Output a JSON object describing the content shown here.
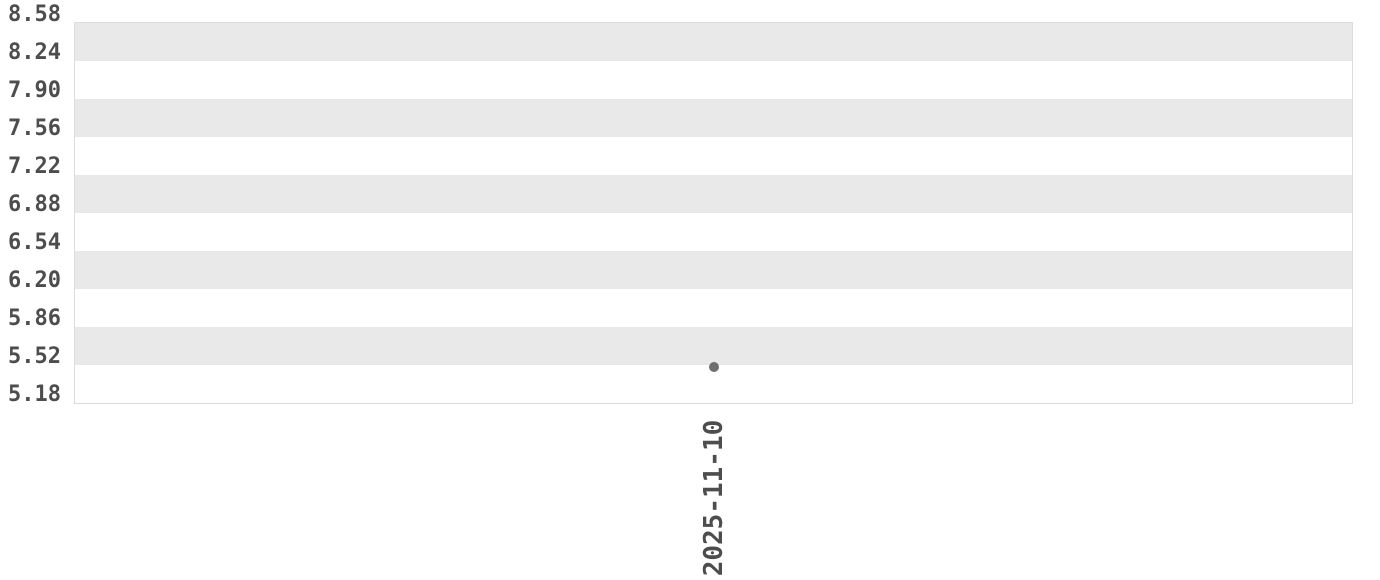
{
  "chart_data": {
    "type": "scatter",
    "title": "",
    "x": [
      "2025-11-10"
    ],
    "series": [
      {
        "values": [
          5.5
        ]
      }
    ],
    "ylim": [
      5.18,
      8.58
    ],
    "y_tick_labels": [
      "8.58",
      "8.24",
      "7.90",
      "7.56",
      "7.22",
      "6.88",
      "6.54",
      "6.20",
      "5.86",
      "5.52",
      "5.18"
    ],
    "y_tick_values": [
      8.58,
      8.24,
      7.9,
      7.56,
      7.22,
      6.88,
      6.54,
      6.2,
      5.86,
      5.52,
      5.18
    ],
    "x_tick_labels": [
      "2025-11-10"
    ],
    "grid": "alternating-horizontal-bands",
    "legend": "none",
    "colors": {
      "band_dark": "#e9e9e9",
      "band_light": "#ffffff",
      "plot_border": "#dcdcdc",
      "axis_text": "#4d4d4d",
      "point": "#6f6f6f"
    }
  }
}
